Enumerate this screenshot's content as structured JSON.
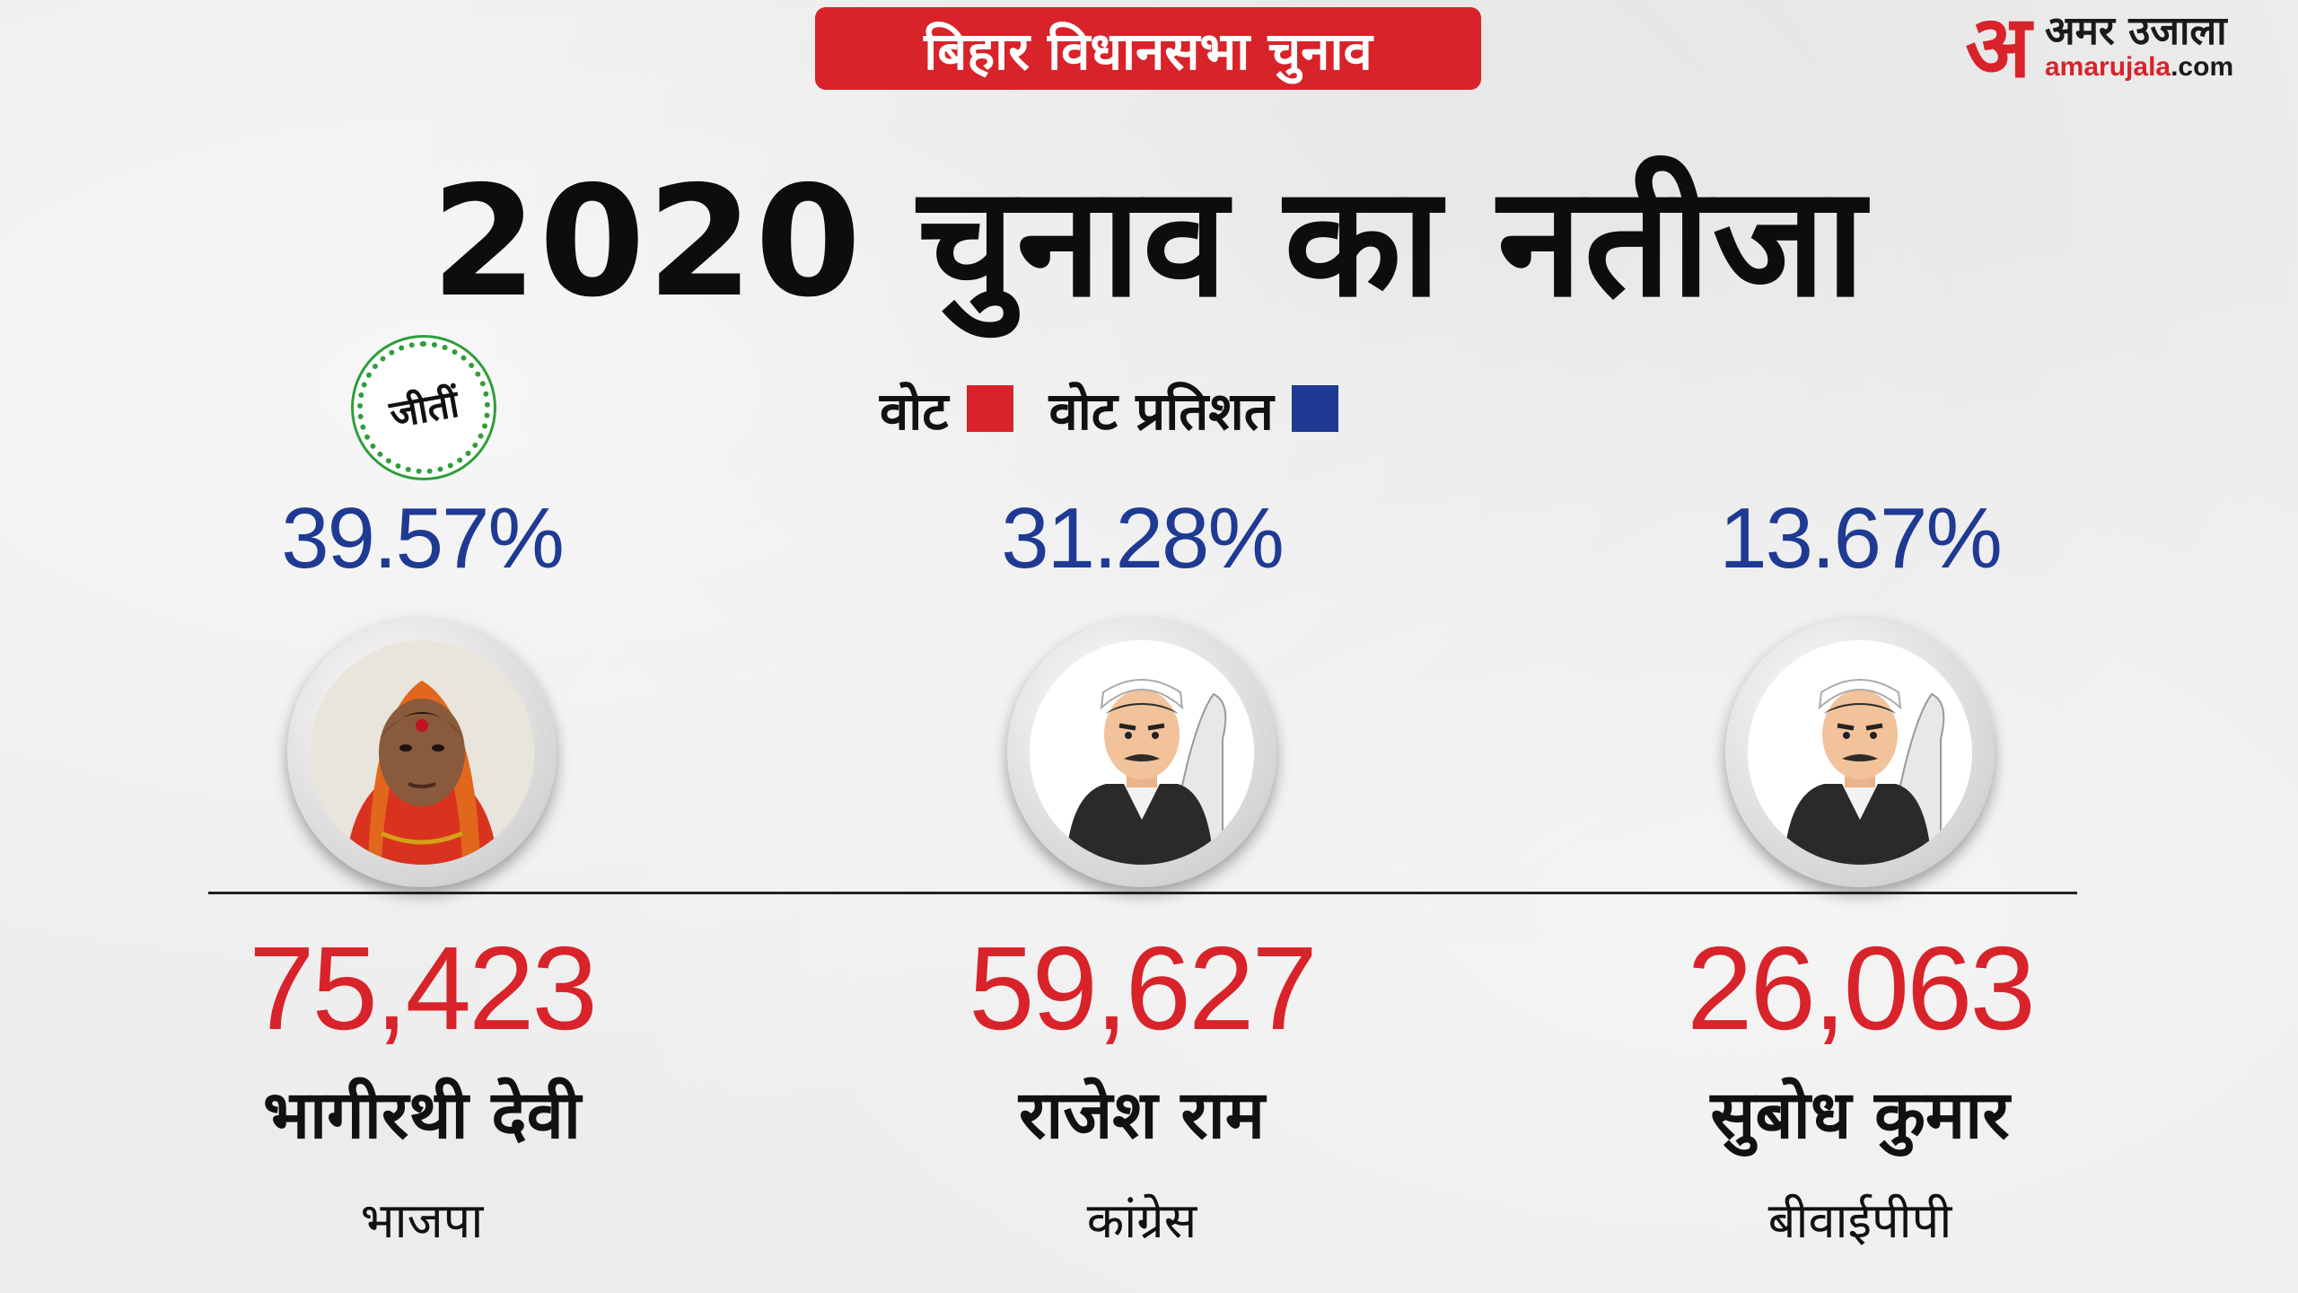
{
  "header": {
    "tag": "बिहार विधानसभा चुनाव",
    "title": "2020 चुनाव का नतीजा"
  },
  "logo": {
    "mark": "अ",
    "name": "अमर उजाला",
    "url_main": "amarujala",
    "url_tld": ".com"
  },
  "legend": {
    "votes_label": "वोट",
    "votes_color": "#d8232a",
    "percent_label": "वोट प्रतिशत",
    "percent_color": "#1f3a93"
  },
  "winner_badge": "जीतीं",
  "candidates": [
    {
      "percent": "39.57%",
      "votes": "75,423",
      "name": "भागीरथी देवी",
      "party": "भाजपा",
      "avatar": "woman-photo-icon"
    },
    {
      "percent": "31.28%",
      "votes": "59,627",
      "name": "राजेश राम",
      "party": "कांग्रेस",
      "avatar": "man-cartoon-icon"
    },
    {
      "percent": "13.67%",
      "votes": "26,063",
      "name": "सुबोध कुमार",
      "party": "बीवाईपीपी",
      "avatar": "man-cartoon-icon"
    }
  ]
}
